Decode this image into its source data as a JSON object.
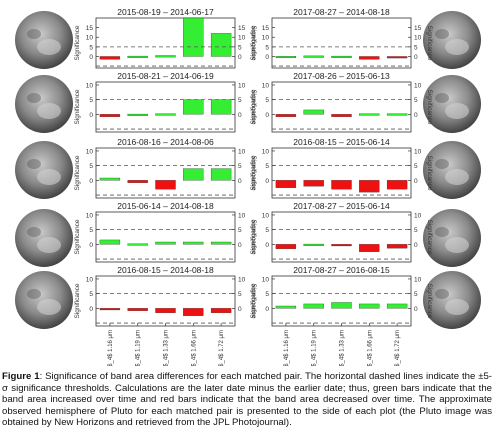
{
  "axis_label": "Significance",
  "band_labels": [
    "CH$_4$ 1.16 μm",
    "CH$_4$ 1.19 μm",
    "CH$_4$ 1.33 μm",
    "CH$_4$ 1.66 μm",
    "CH$_4$ 1.72 μm"
  ],
  "y_ticks": [
    0,
    5,
    10,
    15
  ],
  "colors": {
    "increase": "#33ee33",
    "decrease": "#ee1111",
    "threshold": "#555555",
    "pluto": "#8a8a8a"
  },
  "caption": {
    "label": "Figure 1",
    "text": ": Significance of band area differences for each matched pair. The horizontal dashed lines indicate the ±5-σ significance thresholds. Calculations are the later date minus the earlier date; thus, green bars indicate that the band area increased over time and red bars indicate that the band area decreased over time. The approximate observed hemisphere of Pluto for each matched pair is presented to the side of each plot (the Pluto image was obtained by New Horizons and retrieved from the JPL Photojournal)."
  },
  "chart_data": [
    {
      "type": "bar",
      "title": "2015-08-19 – 2014-06-17",
      "ylabel": "Significance",
      "threshold": 5,
      "ylim": [
        -6,
        20
      ],
      "categories": [
        "CH$_4$ 1.16 μm",
        "CH$_4$ 1.19 μm",
        "CH$_4$ 1.33 μm",
        "CH$_4$ 1.66 μm",
        "CH$_4$ 1.72 μm"
      ],
      "values": [
        -1.5,
        0.2,
        0.5,
        20,
        12
      ]
    },
    {
      "type": "bar",
      "title": "2017-08-27 – 2014-08-18",
      "ylabel": "Significance",
      "threshold": 5,
      "ylim": [
        -6,
        20
      ],
      "categories": [
        "CH$_4$ 1.16 μm",
        "CH$_4$ 1.19 μm",
        "CH$_4$ 1.33 μm",
        "CH$_4$ 1.66 μm",
        "CH$_4$ 1.72 μm"
      ],
      "values": [
        0.1,
        0.3,
        0.2,
        -1.5,
        -0.3
      ]
    },
    {
      "type": "bar",
      "title": "2015-08-21 – 2014-06-19",
      "ylabel": "Significance",
      "threshold": 5,
      "ylim": [
        -6,
        11
      ],
      "categories": [
        "CH$_4$ 1.16 μm",
        "CH$_4$ 1.19 μm",
        "CH$_4$ 1.33 μm",
        "CH$_4$ 1.66 μm",
        "CH$_4$ 1.72 μm"
      ],
      "values": [
        -0.8,
        0.1,
        0.2,
        5,
        5
      ]
    },
    {
      "type": "bar",
      "title": "2017-08-26 – 2015-06-13",
      "ylabel": "Significance",
      "threshold": 5,
      "ylim": [
        -6,
        11
      ],
      "categories": [
        "CH$_4$ 1.16 μm",
        "CH$_4$ 1.19 μm",
        "CH$_4$ 1.33 μm",
        "CH$_4$ 1.66 μm",
        "CH$_4$ 1.72 μm"
      ],
      "values": [
        -0.8,
        1.5,
        -0.8,
        0.2,
        0.2
      ]
    },
    {
      "type": "bar",
      "title": "2016-08-16 – 2014-08-06",
      "ylabel": "Significance",
      "threshold": 5,
      "ylim": [
        -6,
        11
      ],
      "categories": [
        "CH$_4$ 1.16 μm",
        "CH$_4$ 1.19 μm",
        "CH$_4$ 1.33 μm",
        "CH$_4$ 1.66 μm",
        "CH$_4$ 1.72 μm"
      ],
      "values": [
        0.8,
        -0.8,
        -3,
        4,
        4
      ]
    },
    {
      "type": "bar",
      "title": "2016-08-15 – 2015-06-14",
      "ylabel": "Significance",
      "threshold": 5,
      "ylim": [
        -6,
        11
      ],
      "categories": [
        "CH$_4$ 1.16 μm",
        "CH$_4$ 1.19 μm",
        "CH$_4$ 1.33 μm",
        "CH$_4$ 1.66 μm",
        "CH$_4$ 1.72 μm"
      ],
      "values": [
        -2.5,
        -2,
        -3,
        -4,
        -3
      ]
    },
    {
      "type": "bar",
      "title": "2015-06-14 – 2014-08-18",
      "ylabel": "Significance",
      "threshold": 5,
      "ylim": [
        -6,
        11
      ],
      "categories": [
        "CH$_4$ 1.16 μm",
        "CH$_4$ 1.19 μm",
        "CH$_4$ 1.33 μm",
        "CH$_4$ 1.66 μm",
        "CH$_4$ 1.72 μm"
      ],
      "values": [
        1.5,
        0.2,
        0.8,
        0.8,
        0.8
      ]
    },
    {
      "type": "bar",
      "title": "2017-08-27 – 2015-06-14",
      "ylabel": "Significance",
      "threshold": 5,
      "ylim": [
        -6,
        11
      ],
      "categories": [
        "CH$_4$ 1.16 μm",
        "CH$_4$ 1.19 μm",
        "CH$_4$ 1.33 μm",
        "CH$_4$ 1.66 μm",
        "CH$_4$ 1.72 μm"
      ],
      "values": [
        -1.5,
        0.1,
        -0.4,
        -2.5,
        -1.3
      ]
    },
    {
      "type": "bar",
      "title": "2016-08-15 – 2014-08-18",
      "ylabel": "Significance",
      "threshold": 5,
      "ylim": [
        -6,
        11
      ],
      "categories": [
        "CH$_4$ 1.16 μm",
        "CH$_4$ 1.19 μm",
        "CH$_4$ 1.33 μm",
        "CH$_4$ 1.66 μm",
        "CH$_4$ 1.72 μm"
      ],
      "values": [
        -0.3,
        -0.8,
        -1.5,
        -2.5,
        -1.5
      ]
    },
    {
      "type": "bar",
      "title": "2017-08-27 – 2016-08-15",
      "ylabel": "Significance",
      "threshold": 5,
      "ylim": [
        -6,
        11
      ],
      "categories": [
        "CH$_4$ 1.16 μm",
        "CH$_4$ 1.19 μm",
        "CH$_4$ 1.33 μm",
        "CH$_4$ 1.66 μm",
        "CH$_4$ 1.72 μm"
      ],
      "values": [
        0.8,
        1.5,
        2,
        1.5,
        1.5
      ]
    }
  ]
}
